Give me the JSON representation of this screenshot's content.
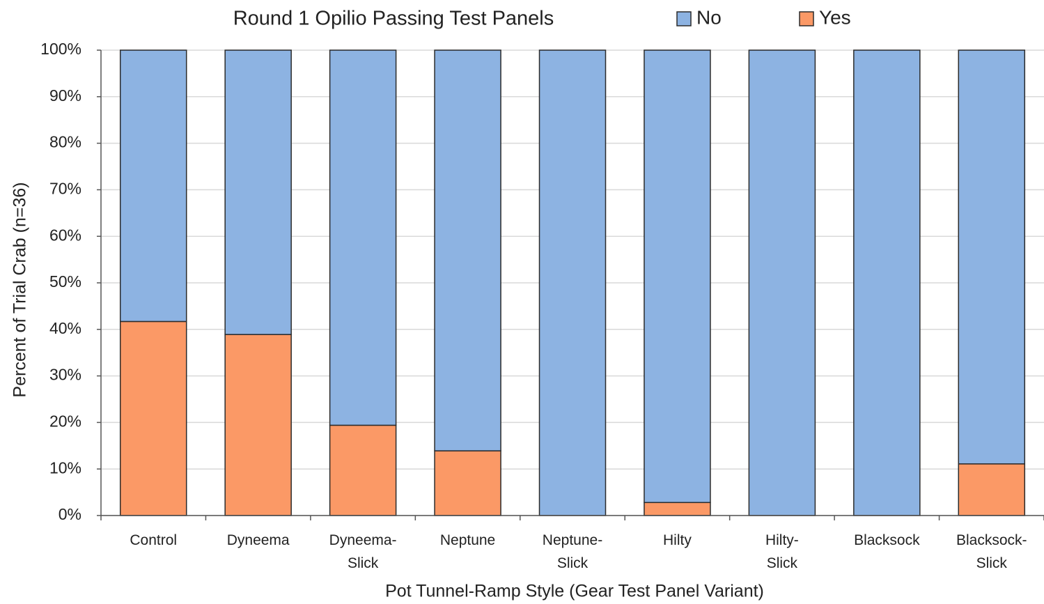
{
  "chart_data": {
    "type": "stacked_bar",
    "title": "Round 1 Opilio Passing Test Panels",
    "x_label": "Pot Tunnel-Ramp Style (Gear Test Panel Variant)",
    "y_label": "Percent of Trial Crab (n=36)",
    "categories": [
      "Control",
      "Dyneema",
      "Dyneema-Slick",
      "Neptune",
      "Neptune-Slick",
      "Hilty",
      "Hilty-Slick",
      "Blacksock",
      "Blacksock-Slick"
    ],
    "series": [
      {
        "name": "Yes",
        "color": "#fb9966",
        "values": [
          41.7,
          38.9,
          19.4,
          13.9,
          0,
          2.8,
          0,
          0,
          11.1
        ]
      },
      {
        "name": "No",
        "color": "#8db3e2",
        "values": [
          58.3,
          61.1,
          80.6,
          86.1,
          100,
          97.2,
          100,
          100,
          88.9
        ]
      }
    ],
    "legend_order": [
      "No",
      "Yes"
    ],
    "ylim": [
      0,
      100
    ],
    "yticks": [
      {
        "value": 0,
        "label": "0%"
      },
      {
        "value": 10,
        "label": "10%"
      },
      {
        "value": 20,
        "label": "20%"
      },
      {
        "value": 30,
        "label": "30%"
      },
      {
        "value": 40,
        "label": "40%"
      },
      {
        "value": 50,
        "label": "50%"
      },
      {
        "value": 60,
        "label": "60%"
      },
      {
        "value": 70,
        "label": "70%"
      },
      {
        "value": 80,
        "label": "80%"
      },
      {
        "value": 90,
        "label": "90%"
      },
      {
        "value": 100,
        "label": "100%"
      }
    ],
    "grid": true
  }
}
